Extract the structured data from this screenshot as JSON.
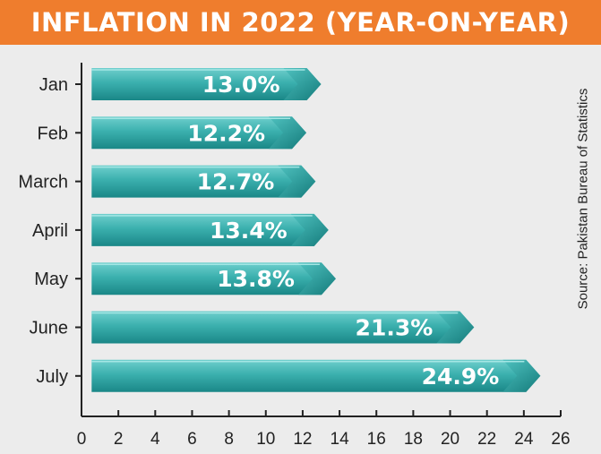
{
  "header": {
    "title": "INFLATION IN 2022 (YEAR-ON-YEAR)"
  },
  "source": "Source: Pakistan Bureau of Statistics",
  "colors": {
    "banner": "#ef7d2d",
    "bar_light": "#3fb3b2",
    "bar_dark": "#1a8c8c",
    "axis": "#222222"
  },
  "chart_data": {
    "type": "bar",
    "orientation": "horizontal",
    "title": "INFLATION IN 2022 (YEAR-ON-YEAR)",
    "categories": [
      "Jan",
      "Feb",
      "March",
      "April",
      "May",
      "June",
      "July"
    ],
    "values": [
      13.0,
      12.2,
      12.7,
      13.4,
      13.8,
      21.3,
      24.9
    ],
    "data_labels": [
      "13.0%",
      "12.2%",
      "12.7%",
      "13.4%",
      "13.8%",
      "21.3%",
      "24.9%"
    ],
    "xlim": [
      0,
      26
    ],
    "xticks": [
      0,
      2,
      4,
      6,
      8,
      10,
      12,
      14,
      16,
      18,
      20,
      22,
      24,
      26
    ],
    "xlabel": "",
    "ylabel": "",
    "grid": false,
    "legend": "none"
  }
}
